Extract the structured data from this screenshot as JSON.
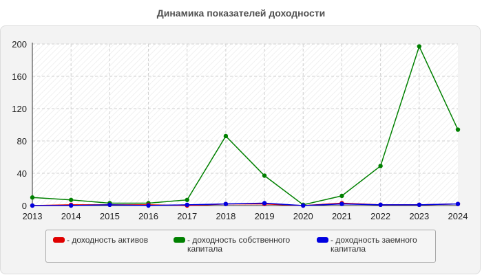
{
  "chart_data": {
    "type": "line",
    "title": "Динамика показателей доходности",
    "xlabel": "",
    "ylabel": "",
    "x": [
      2013,
      2014,
      2015,
      2016,
      2017,
      2018,
      2019,
      2020,
      2021,
      2022,
      2023,
      2024
    ],
    "ylim": [
      0,
      200
    ],
    "yticks": [
      0,
      40,
      80,
      120,
      160,
      200
    ],
    "grid": true,
    "legend_position": "bottom",
    "series": [
      {
        "name": "- доходность активов",
        "color": "#e00000",
        "values": [
          0,
          1,
          1,
          1,
          0,
          2,
          2,
          0,
          3,
          1,
          1,
          2
        ]
      },
      {
        "name": "- доходность собственного капитала",
        "color": "#008000",
        "values": [
          10,
          7,
          3,
          3,
          7,
          86,
          37,
          1,
          12,
          49,
          197,
          94
        ]
      },
      {
        "name": "- доходность заемного капитала",
        "color": "#0000e0",
        "values": [
          0,
          0,
          1,
          0,
          1,
          2,
          3,
          0,
          2,
          1,
          1,
          2
        ]
      }
    ]
  }
}
